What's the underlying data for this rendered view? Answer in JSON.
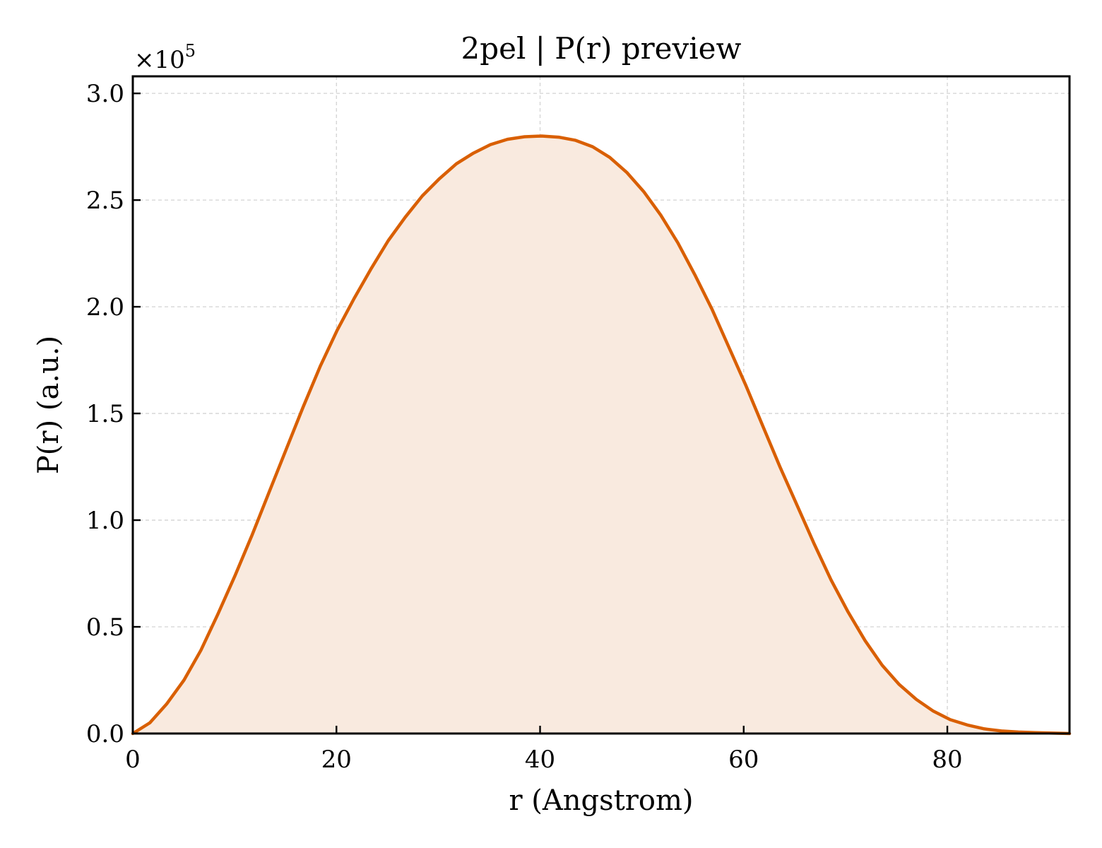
{
  "chart_data": {
    "type": "area",
    "title": "2pel | P(r) preview",
    "xlabel": "r (Angstrom)",
    "ylabel": "P(r) (a.u.)",
    "y_multiplier": {
      "base": "×10",
      "exponent": "5"
    },
    "xlim": [
      0,
      92
    ],
    "ylim": [
      0,
      3.08
    ],
    "y_scale": 100000,
    "x_ticks": [
      {
        "value": 0,
        "label": "0"
      },
      {
        "value": 20,
        "label": "20"
      },
      {
        "value": 40,
        "label": "40"
      },
      {
        "value": 60,
        "label": "60"
      },
      {
        "value": 80,
        "label": "80"
      }
    ],
    "y_ticks": [
      {
        "value": 0.0,
        "label": "0.0"
      },
      {
        "value": 0.5,
        "label": "0.5"
      },
      {
        "value": 1.0,
        "label": "1.0"
      },
      {
        "value": 1.5,
        "label": "1.5"
      },
      {
        "value": 2.0,
        "label": "2.0"
      },
      {
        "value": 2.5,
        "label": "2.5"
      },
      {
        "value": 3.0,
        "label": "3.0"
      }
    ],
    "grid": true,
    "line_color": "#d95f02",
    "fill_color": "#f9eadf",
    "series": [
      {
        "x": [
          0,
          1.67,
          3.35,
          5.02,
          6.69,
          8.36,
          10.04,
          11.71,
          13.38,
          15.05,
          16.73,
          18.4,
          20.07,
          21.75,
          23.42,
          25.09,
          26.76,
          28.44,
          30.11,
          31.78,
          33.45,
          35.13,
          36.8,
          38.47,
          40.15,
          41.82,
          43.49,
          45.16,
          46.84,
          48.51,
          50.18,
          51.85,
          53.53,
          55.2,
          56.87,
          58.55,
          60.22,
          61.89,
          63.56,
          65.24,
          66.91,
          68.58,
          70.25,
          71.93,
          73.6,
          75.27,
          76.95,
          78.62,
          80.29,
          81.96,
          83.64,
          85.31,
          86.98,
          88.65,
          90.33,
          92
        ],
        "y": [
          0.0,
          0.05,
          0.14,
          0.25,
          0.39,
          0.56,
          0.74,
          0.93,
          1.13,
          1.33,
          1.53,
          1.72,
          1.89,
          2.04,
          2.18,
          2.31,
          2.42,
          2.52,
          2.6,
          2.67,
          2.72,
          2.76,
          2.785,
          2.797,
          2.8,
          2.795,
          2.78,
          2.75,
          2.7,
          2.63,
          2.54,
          2.43,
          2.3,
          2.15,
          1.99,
          1.81,
          1.63,
          1.44,
          1.25,
          1.07,
          0.89,
          0.72,
          0.57,
          0.435,
          0.32,
          0.23,
          0.16,
          0.105,
          0.065,
          0.04,
          0.022,
          0.012,
          0.007,
          0.004,
          0.002,
          0.0
        ]
      }
    ]
  }
}
